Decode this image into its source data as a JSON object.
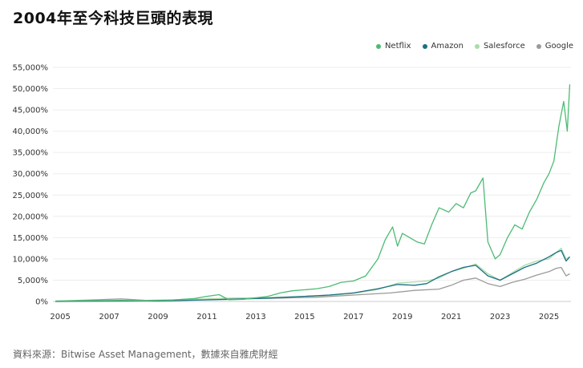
{
  "title": "2004年至今科技巨頭的表現",
  "source_note": "資料來源：Bitwise Asset Management，數據來自雅虎財經",
  "colors": {
    "netflix": "#4dbb74",
    "amazon": "#1c6f85",
    "salesforce": "#a9dca8",
    "google": "#9a9a9a",
    "grid": "#eeeeee",
    "axis_text": "#333333"
  },
  "chart_data": {
    "type": "line",
    "title": "2004年至今科技巨頭的表現",
    "xlabel": "",
    "ylabel": "",
    "xlim": [
      2004.7,
      2025.9
    ],
    "ylim": [
      0,
      55000
    ],
    "grid": "horizontal",
    "legend_position": "top-right",
    "x_ticks": [
      2005,
      2007,
      2009,
      2011,
      2013,
      2015,
      2017,
      2019,
      2021,
      2023,
      2025
    ],
    "y_ticks": [
      0,
      5000,
      10000,
      15000,
      20000,
      25000,
      30000,
      35000,
      40000,
      45000,
      50000,
      55000
    ],
    "y_tick_labels": [
      "0%",
      "5,000%",
      "10,000%",
      "15,000%",
      "20,000%",
      "25,000%",
      "30,000%",
      "35,000%",
      "40,000%",
      "45,000%",
      "50,000%",
      "55,000%"
    ],
    "series": [
      {
        "name": "Netflix",
        "color": "#4dbb74",
        "x": [
          2004.8,
          2005.5,
          2006.5,
          2007.5,
          2008.5,
          2009.5,
          2010.5,
          2011.0,
          2011.5,
          2011.9,
          2012.5,
          2013.5,
          2014.0,
          2014.5,
          2015.5,
          2016.0,
          2016.5,
          2017.0,
          2017.5,
          2018.0,
          2018.3,
          2018.6,
          2018.8,
          2019.0,
          2019.3,
          2019.6,
          2019.9,
          2020.2,
          2020.5,
          2020.9,
          2021.2,
          2021.5,
          2021.8,
          2022.0,
          2022.3,
          2022.5,
          2022.8,
          2023.0,
          2023.3,
          2023.6,
          2023.9,
          2024.2,
          2024.5,
          2024.8,
          2025.0,
          2025.2,
          2025.4,
          2025.6,
          2025.75,
          2025.85
        ],
        "y": [
          100,
          150,
          200,
          250,
          150,
          300,
          700,
          1200,
          1600,
          400,
          500,
          1200,
          2000,
          2500,
          3000,
          3500,
          4500,
          4800,
          6000,
          10000,
          14500,
          17500,
          13000,
          16000,
          15000,
          14000,
          13500,
          18000,
          22000,
          21000,
          23000,
          22000,
          25500,
          26000,
          29000,
          14000,
          10000,
          11000,
          15000,
          18000,
          17000,
          21000,
          24000,
          28000,
          30000,
          33000,
          41000,
          47000,
          40000,
          51000
        ]
      },
      {
        "name": "Amazon",
        "color": "#1c6f85",
        "x": [
          2004.8,
          2006.0,
          2008.0,
          2009.0,
          2010.5,
          2012.0,
          2013.5,
          2015.0,
          2016.0,
          2017.0,
          2018.0,
          2018.8,
          2019.5,
          2020.0,
          2020.5,
          2021.0,
          2021.5,
          2022.0,
          2022.5,
          2023.0,
          2023.5,
          2024.0,
          2024.5,
          2025.0,
          2025.3,
          2025.5,
          2025.7,
          2025.85
        ],
        "y": [
          0,
          50,
          100,
          100,
          300,
          500,
          800,
          1200,
          1500,
          2000,
          3000,
          4000,
          3800,
          4200,
          5800,
          7000,
          8000,
          8500,
          6000,
          5000,
          6500,
          8000,
          9000,
          10500,
          11500,
          12000,
          9500,
          10500
        ]
      },
      {
        "name": "Salesforce",
        "color": "#a9dca8",
        "x": [
          2004.8,
          2006.0,
          2008.0,
          2009.0,
          2010.5,
          2012.0,
          2013.5,
          2015.0,
          2016.0,
          2017.0,
          2018.0,
          2018.8,
          2019.5,
          2020.0,
          2020.5,
          2021.0,
          2021.5,
          2022.0,
          2022.5,
          2023.0,
          2023.5,
          2024.0,
          2024.5,
          2025.0,
          2025.3,
          2025.5,
          2025.7,
          2025.85
        ],
        "y": [
          0,
          100,
          200,
          100,
          500,
          800,
          900,
          1200,
          1400,
          1900,
          2800,
          4300,
          4600,
          4800,
          5500,
          7000,
          7800,
          8800,
          6500,
          5000,
          6800,
          8500,
          9500,
          10000,
          11500,
          12500,
          10000,
          10500
        ]
      },
      {
        "name": "Google",
        "color": "#9a9a9a",
        "x": [
          2004.8,
          2006.0,
          2007.5,
          2008.5,
          2010.0,
          2012.0,
          2014.0,
          2015.5,
          2017.0,
          2018.5,
          2019.5,
          2020.5,
          2021.0,
          2021.5,
          2022.0,
          2022.5,
          2023.0,
          2023.5,
          2024.0,
          2024.5,
          2025.0,
          2025.3,
          2025.5,
          2025.7,
          2025.85
        ],
        "y": [
          100,
          300,
          600,
          250,
          400,
          600,
          800,
          1000,
          1500,
          2000,
          2600,
          2900,
          3800,
          5000,
          5500,
          4200,
          3500,
          4500,
          5200,
          6200,
          7000,
          7800,
          8000,
          6000,
          6500
        ]
      }
    ]
  }
}
